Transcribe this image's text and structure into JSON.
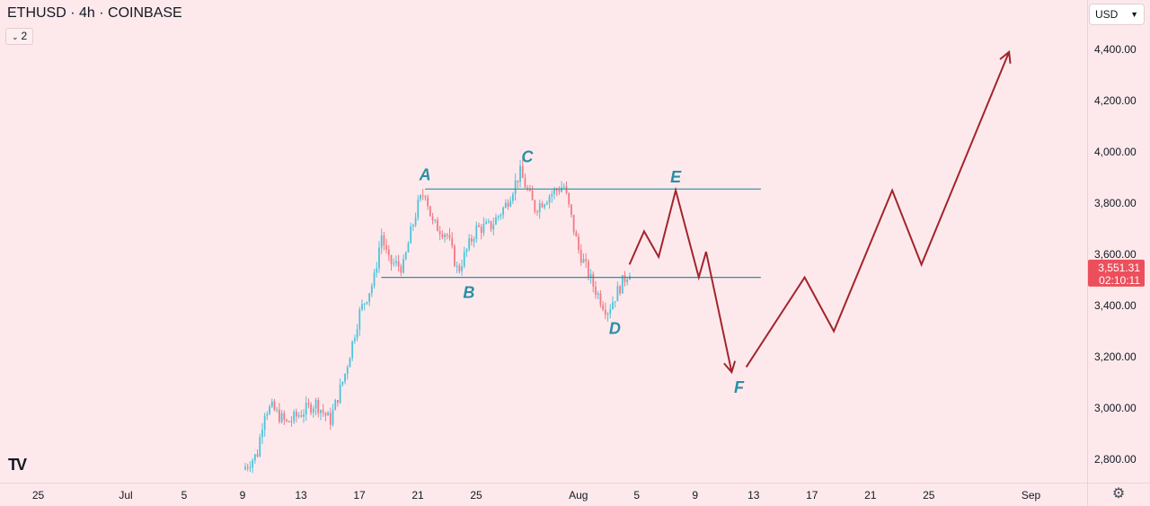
{
  "header": {
    "title": "ETHUSD · 4h · COINBASE",
    "indicators_count": "2",
    "currency": "USD"
  },
  "colors": {
    "background": "#fde9ec",
    "up_candle": "#4fc3d9",
    "down_candle": "#f27a84",
    "projection": "#a3242c",
    "level_line": "#2f8fa0",
    "label": "#2a8fa5",
    "price_tag": "#ec4f5c"
  },
  "icons": {
    "logo": "tradingview-logo-icon",
    "settings": "gear-icon"
  },
  "chart_data": {
    "type": "candlestick",
    "symbol": "ETHUSD",
    "interval": "4h",
    "exchange": "COINBASE",
    "ylim": [
      2740,
      4510
    ],
    "y_ticks": [
      {
        "value": 2800,
        "label": "2,800.00"
      },
      {
        "value": 3000,
        "label": "3,000.00"
      },
      {
        "value": 3200,
        "label": "3,200.00"
      },
      {
        "value": 3400,
        "label": "3,400.00"
      },
      {
        "value": 3600,
        "label": "3,600.00"
      },
      {
        "value": 3800,
        "label": "3,800.00"
      },
      {
        "value": 4000,
        "label": "4,000.00"
      },
      {
        "value": 4200,
        "label": "4,200.00"
      },
      {
        "value": 4400,
        "label": "4,400.00"
      }
    ],
    "x_ticks": [
      {
        "date": "2025-06-25",
        "label": "25"
      },
      {
        "date": "2025-07-01",
        "label": "Jul"
      },
      {
        "date": "2025-07-05",
        "label": "5"
      },
      {
        "date": "2025-07-09",
        "label": "9"
      },
      {
        "date": "2025-07-13",
        "label": "13"
      },
      {
        "date": "2025-07-17",
        "label": "17"
      },
      {
        "date": "2025-07-21",
        "label": "21"
      },
      {
        "date": "2025-07-25",
        "label": "25"
      },
      {
        "date": "2025-08-01",
        "label": "Aug"
      },
      {
        "date": "2025-08-05",
        "label": "5"
      },
      {
        "date": "2025-08-09",
        "label": "9"
      },
      {
        "date": "2025-08-13",
        "label": "13"
      },
      {
        "date": "2025-08-17",
        "label": "17"
      },
      {
        "date": "2025-08-21",
        "label": "21"
      },
      {
        "date": "2025-08-25",
        "label": "25"
      },
      {
        "date": "2025-09-01",
        "label": "Sep"
      }
    ],
    "price_path": [
      {
        "date": "2025-07-09",
        "price": 2760
      },
      {
        "date": "2025-07-10",
        "price": 2820
      },
      {
        "date": "2025-07-10T12:00",
        "price": 2990
      },
      {
        "date": "2025-07-11",
        "price": 3000
      },
      {
        "date": "2025-07-12",
        "price": 2940
      },
      {
        "date": "2025-07-13",
        "price": 2980
      },
      {
        "date": "2025-07-14",
        "price": 3020
      },
      {
        "date": "2025-07-15",
        "price": 2950
      },
      {
        "date": "2025-07-16",
        "price": 3130
      },
      {
        "date": "2025-07-17",
        "price": 3370
      },
      {
        "date": "2025-07-18",
        "price": 3500
      },
      {
        "date": "2025-07-18T12:00",
        "price": 3680
      },
      {
        "date": "2025-07-19",
        "price": 3570
      },
      {
        "date": "2025-07-20",
        "price": 3550
      },
      {
        "date": "2025-07-20T12:00",
        "price": 3680
      },
      {
        "date": "2025-07-21",
        "price": 3790
      },
      {
        "date": "2025-07-21T12:00",
        "price": 3850
      },
      {
        "date": "2025-07-22",
        "price": 3720
      },
      {
        "date": "2025-07-23",
        "price": 3680
      },
      {
        "date": "2025-07-23T18:00",
        "price": 3530
      },
      {
        "date": "2025-07-24",
        "price": 3570
      },
      {
        "date": "2025-07-25",
        "price": 3700
      },
      {
        "date": "2025-07-26",
        "price": 3710
      },
      {
        "date": "2025-07-27",
        "price": 3790
      },
      {
        "date": "2025-07-28",
        "price": 3920
      },
      {
        "date": "2025-07-29",
        "price": 3780
      },
      {
        "date": "2025-07-30",
        "price": 3830
      },
      {
        "date": "2025-07-31",
        "price": 3870
      },
      {
        "date": "2025-08-01",
        "price": 3620
      },
      {
        "date": "2025-08-02",
        "price": 3480
      },
      {
        "date": "2025-08-02T18:00",
        "price": 3400
      },
      {
        "date": "2025-08-03",
        "price": 3380
      },
      {
        "date": "2025-08-04",
        "price": 3490
      },
      {
        "date": "2025-08-04T16:00",
        "price": 3551.31
      }
    ],
    "levels": [
      {
        "name": "resistance",
        "price": 3855,
        "from": "2025-07-21T12:00",
        "to": "2025-08-13T12:00"
      },
      {
        "name": "support",
        "price": 3510,
        "from": "2025-07-18T12:00",
        "to": "2025-08-13T12:00"
      }
    ],
    "projection_path": [
      {
        "date": "2025-08-04T12:00",
        "price": 3560
      },
      {
        "date": "2025-08-05T12:00",
        "price": 3690
      },
      {
        "date": "2025-08-06T12:00",
        "price": 3590
      },
      {
        "date": "2025-08-07T16:00",
        "price": 3850
      },
      {
        "date": "2025-08-09T06:00",
        "price": 3510
      },
      {
        "date": "2025-08-09T18:00",
        "price": 3610
      },
      {
        "date": "2025-08-11T12:00",
        "price": 3140
      }
    ],
    "projection_path_2": [
      {
        "date": "2025-08-12T12:00",
        "price": 3160
      },
      {
        "date": "2025-08-16T12:00",
        "price": 3510
      },
      {
        "date": "2025-08-18T12:00",
        "price": 3300
      },
      {
        "date": "2025-08-22T12:00",
        "price": 3850
      },
      {
        "date": "2025-08-24T12:00",
        "price": 3560
      },
      {
        "date": "2025-08-30T12:00",
        "price": 4390
      }
    ],
    "wave_labels": [
      {
        "label": "A",
        "date": "2025-07-21T12:00",
        "price": 3890
      },
      {
        "label": "B",
        "date": "2025-07-24T12:00",
        "price": 3430
      },
      {
        "label": "C",
        "date": "2025-07-28T12:00",
        "price": 3960
      },
      {
        "label": "D",
        "date": "2025-08-03T12:00",
        "price": 3290
      },
      {
        "label": "E",
        "date": "2025-08-07T16:00",
        "price": 3880
      },
      {
        "label": "F",
        "date": "2025-08-12T00:00",
        "price": 3060
      }
    ],
    "last_price": {
      "value": 3551.31,
      "label": "3,551.31",
      "countdown": "02:10:11"
    }
  }
}
